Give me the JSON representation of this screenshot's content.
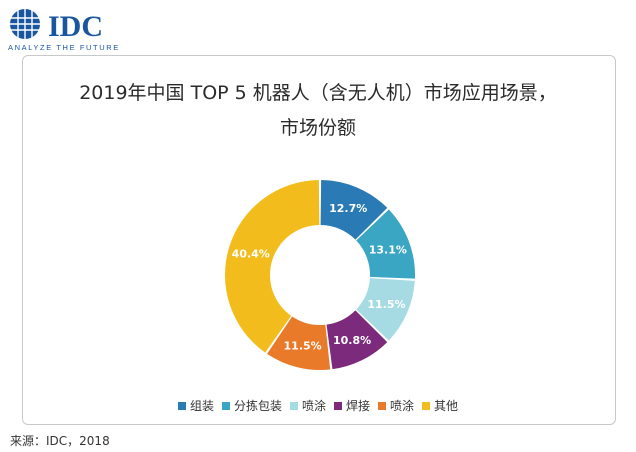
{
  "logo": {
    "brand": "IDC",
    "tagline": "ANALYZE THE FUTURE",
    "brand_color": "#1a56a0",
    "icon": "globe-grid-icon"
  },
  "chart_data": {
    "type": "pie",
    "donut": true,
    "title": "2019年中国 TOP 5 机器人（含无人机）市场应用场景，",
    "subtitle": "市场份额",
    "categories": [
      "组装",
      "分拣包装",
      "喷涂",
      "焊接",
      "喷涂",
      "其他"
    ],
    "values": [
      12.7,
      13.1,
      11.5,
      10.8,
      11.5,
      40.4
    ],
    "labels": [
      "12.7%",
      "13.1%",
      "11.5%",
      "10.8%",
      "11.5%",
      "40.4%"
    ],
    "colors": [
      "#2a7ab5",
      "#3aa6c4",
      "#a7dbe3",
      "#7b2a7c",
      "#e97a2a",
      "#f2bd1c"
    ],
    "label_colors": [
      "#ffffff",
      "#ffffff",
      "#ffffff",
      "#ffffff",
      "#ffffff",
      "#ffffff"
    ],
    "legend_position": "bottom"
  },
  "source": "来源：IDC，2018"
}
